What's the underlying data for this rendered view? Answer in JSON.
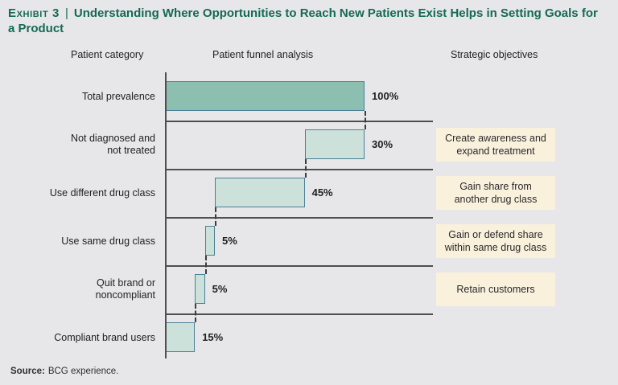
{
  "page": {
    "background": "#e7e7e9"
  },
  "header": {
    "exhibit_label": "Exhibit 3",
    "separator": "|",
    "title": "Understanding Where Opportunities to Reach New Patients Exist Helps in Setting Goals for a Product",
    "accent_color": "#146a52"
  },
  "column_headers": {
    "category": "Patient category",
    "funnel": "Patient funnel analysis",
    "objectives": "Strategic objectives"
  },
  "chart_data": {
    "type": "bar",
    "orientation": "horizontal",
    "style": "cascade-funnel",
    "title": "Patient funnel analysis",
    "xlim": [
      0,
      100
    ],
    "unit": "%",
    "grid": "row-dividers",
    "categories": [
      "Total prevalence",
      "Not diagnosed and\nnot treated",
      "Use different drug class",
      "Use same drug class",
      "Quit brand or\nnoncompliant",
      "Compliant brand users"
    ],
    "values": [
      100,
      30,
      45,
      5,
      5,
      15
    ],
    "value_labels": [
      "100%",
      "30%",
      "45%",
      "5%",
      "5%",
      "15%"
    ],
    "bar_starts": [
      0,
      70,
      25,
      20,
      15,
      0
    ],
    "emphasized_row": 0,
    "objectives": [
      "",
      "Create awareness and\nexpand treatment",
      "Gain share from\nanother drug class",
      "Gain or defend share\nwithin same drug class",
      "Retain customers",
      ""
    ],
    "colors": {
      "bar_fill_primary": "#8dbfb0",
      "bar_fill_secondary": "#cbe1d9",
      "bar_border": "#4c7f97",
      "line": "#4f4f51",
      "dashed_connector": "#3c3c3c",
      "objective_bg": "#faf1dd"
    }
  },
  "source": {
    "label": "Source:",
    "text": "BCG experience."
  }
}
